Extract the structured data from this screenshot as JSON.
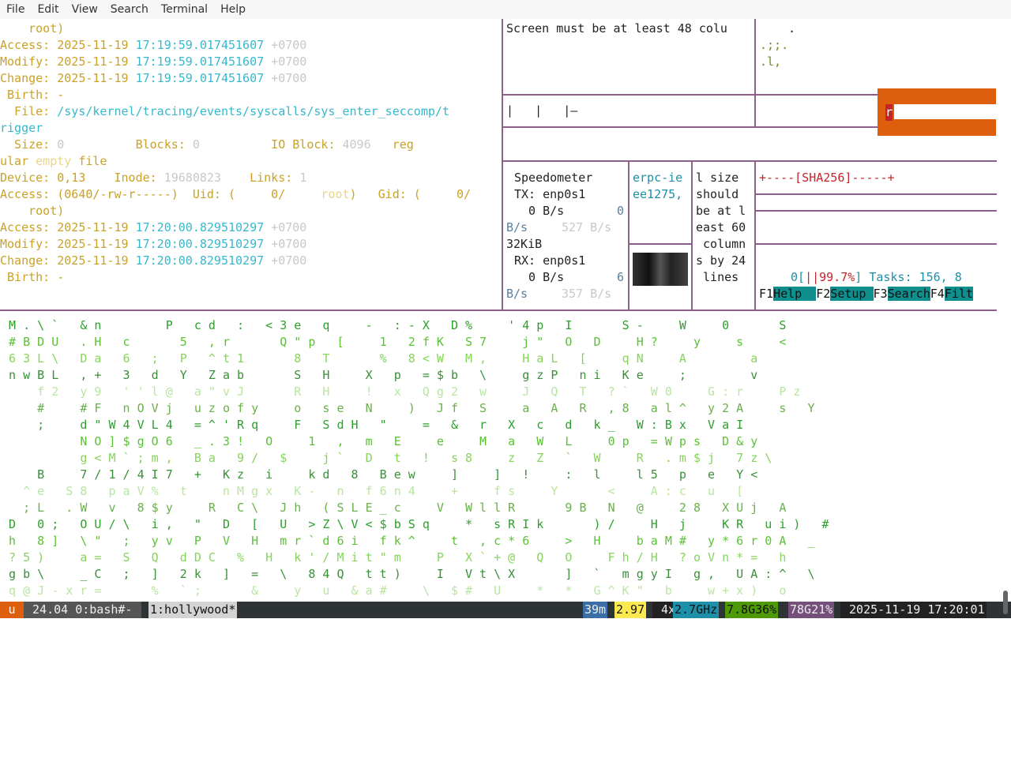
{
  "menu": [
    "File",
    "Edit",
    "View",
    "Search",
    "Terminal",
    "Help"
  ],
  "stat1": {
    "root_cont": "    root)",
    "access_label": "Access: ",
    "access_date": "2025-11-19 ",
    "access_time": "17:19:59.017451607",
    "access_tz": " +0700",
    "modify_label": "Modify: ",
    "modify_date": "2025-11-19 ",
    "modify_time": "17:19:59.017451607",
    "modify_tz": " +0700",
    "change_label": "Change: ",
    "change_date": "2025-11-19 ",
    "change_time": "17:19:59.017451607",
    "change_tz": " +0700",
    "birth": " Birth: -"
  },
  "stat2": {
    "file_label": "  File: ",
    "file_path1": "/sys/kernel/tracing/events/syscalls/sys_enter_seccomp/t",
    "file_path2": "rigger",
    "size_label": "  Size: ",
    "size_val": "0",
    "blocks_label": "          Blocks: ",
    "blocks_val": "0",
    "io_label": "          IO Block: ",
    "io_val": "4096",
    "reg": "   reg",
    "reg2a": "ular ",
    "reg2b": "empty",
    "reg2c": " file",
    "device_label": "Device: ",
    "device_val": "0,13",
    "inode_label": "    Inode: ",
    "inode_val": "19680823",
    "links_label": "    Links: ",
    "links_val": "1",
    "perm_line": "Access: (0640/-rw-r-----)  Uid: (     0/     ",
    "perm_root": "root",
    "perm_gid": ")   Gid: (     0/",
    "root_cont": "    root)",
    "access_label": "Access: ",
    "access_date": "2025-11-19 ",
    "access_time": "17:20:00.829510297",
    "access_tz": " +0700",
    "modify_label": "Modify: ",
    "modify_date": "2025-11-19 ",
    "modify_time": "17:20:00.829510297",
    "modify_tz": " +0700",
    "change_label": "Change: ",
    "change_date": "2025-11-19 ",
    "change_time": "17:20:00.829510297",
    "change_tz": " +0700",
    "birth": " Birth: -"
  },
  "panes": {
    "screen_msg": "Screen must be at least 48 colu",
    "art1": "    .",
    "art2": ".;;.",
    "art3": ".l,",
    "bars": "|   |   |—",
    "orange_char": "r",
    "speedo_title": "Speedometer",
    "tx_line": "TX: enp0s1",
    "tx_rate": "  0 B/s",
    "tx_zero": "0",
    "tx_unit": "B/s",
    "tx_mid": "527 B/s",
    "mem": "32KiB",
    "rx_line": "RX: enp0s1",
    "rx_rate": "  0 B/s",
    "rx_six": "6",
    "rx_unit": "B/s",
    "rx_mid": "357 B/s",
    "erpc1": "erpc-ie",
    "erpc2": "ee1275,",
    "size_msg": [
      "l size",
      "should",
      "be at l",
      "east 60",
      " column",
      "s by 24",
      " lines"
    ],
    "sha": "+----[SHA256]-----+",
    "htop_cpu_a": "0[",
    "htop_cpu_b": "||",
    "htop_cpu_c": "99.7%",
    "htop_cpu_d": "] Tasks: ",
    "htop_tasks": "156, 8",
    "f1": "F1",
    "f1l": "Help  ",
    "f2": "F2",
    "f2l": "Setup ",
    "f3": "F3",
    "f3l": "Search",
    "f4": "F4",
    "f4l": "Filt"
  },
  "matrix_rows": [
    " M . \\ `   & n         P   c d   :   < 3 e   q     -   : - X   D %     ' 4 p   I       S -     W     0       S",
    " # B D U   . H   c       5   , r       Q \" p   [     1   2 f K   S 7     j \"   O   D     H ?     y     s     <",
    " 6 3 L \\   D a   6   ;   P   ^ t 1       8   T       %   8 < W   M ,     H a L   [     q N     A         a",
    " n w B L   , +   3   d   Y   Z a b       S   H     X   p   = $ b   \\     g z P   n i   K e     ;         v",
    "     f 2   y 9   ' ' l @   a \" v J       R   H     !   x   Q g 2   w     J   Q   T   ? `   W 0     G : r     P z",
    "     #     # F   n O V j   u z o f y     o   s e   N     )   J f   S     a   A   R   , 8   a l ^   y 2 A     s   Y",
    "     ;     d \" W 4 V L 4   = ^ ' R q     F   S d H   \"     =   &   r   X   c   d   k _   W : B x   V a I",
    "           N O ] $ g O 6   _ . 3 !   O     1   ,   m   E     e     M   a   W   L     0 p   = W p s   D & y",
    "           g < M ` ; m ,   B a   9 /   $     j `   D   t   !   s 8     z   Z   `   W     R   . m $ j   7 z \\",
    "     B     7 / 1 / 4 I 7   +   K z   i     k d   8   B e w     ]     ]   !     :   l     l 5   p   e   Y <",
    "   ^ e   S 8   p a V %   t     n M g x   K -   n   f 6 n 4     +     f s     Y       <     A : c   u   [",
    "   ; L   . W   v   8 $ y     R   C \\   J h   ( S L E _ c     V   W l l R       9 B   N   @     2 8   X U j   A",
    " D   0 ;   O U / \\   i ,   \"   D   [   U   > Z \\ V < $ b S q     *   s R I k       ) /     H   j     K R   u i )   #",
    " h   8 ]   \\ \"   ;   y v   P   V   H   m r ` d 6 i   f k ^     t   , c * 6     >   H     b a M #   y * 6 r 0 A   _",
    " ? 5 )     a =   S   Q   d D C   %   H   k ' / M i t \" m     P   X ` + @   Q   O     F h / H   ? o V n * =   h",
    " g b \\     _ C   ;   ]   2 k   ]   =   \\   8 4 Q   t t )     I   V t \\ X       ]   `   m g y I   g ,   U A : ^   \\",
    " q @ J - x r =       %   ` ;       &     y   u   & a #     \\   $ #   U     *   *   G ^ K \"   b     w + x )   o"
  ],
  "status": {
    "session": "u",
    "left": " 24.04 0:bash#- ",
    "win": "1:hollywood*",
    "time39": "39m",
    "load": "2.97",
    "cpu_a": " 4x",
    "cpu_b": "2.7GHz",
    "mem": "7.8G36%",
    "disk": "78G21%",
    "datetime": " 2025-11-19 17:20:01"
  },
  "colors": {
    "pane_border": "#8e5e8c",
    "orange": "#dd5e0d",
    "teal": "#0f8e8e",
    "status_bg": "#2e3436"
  }
}
